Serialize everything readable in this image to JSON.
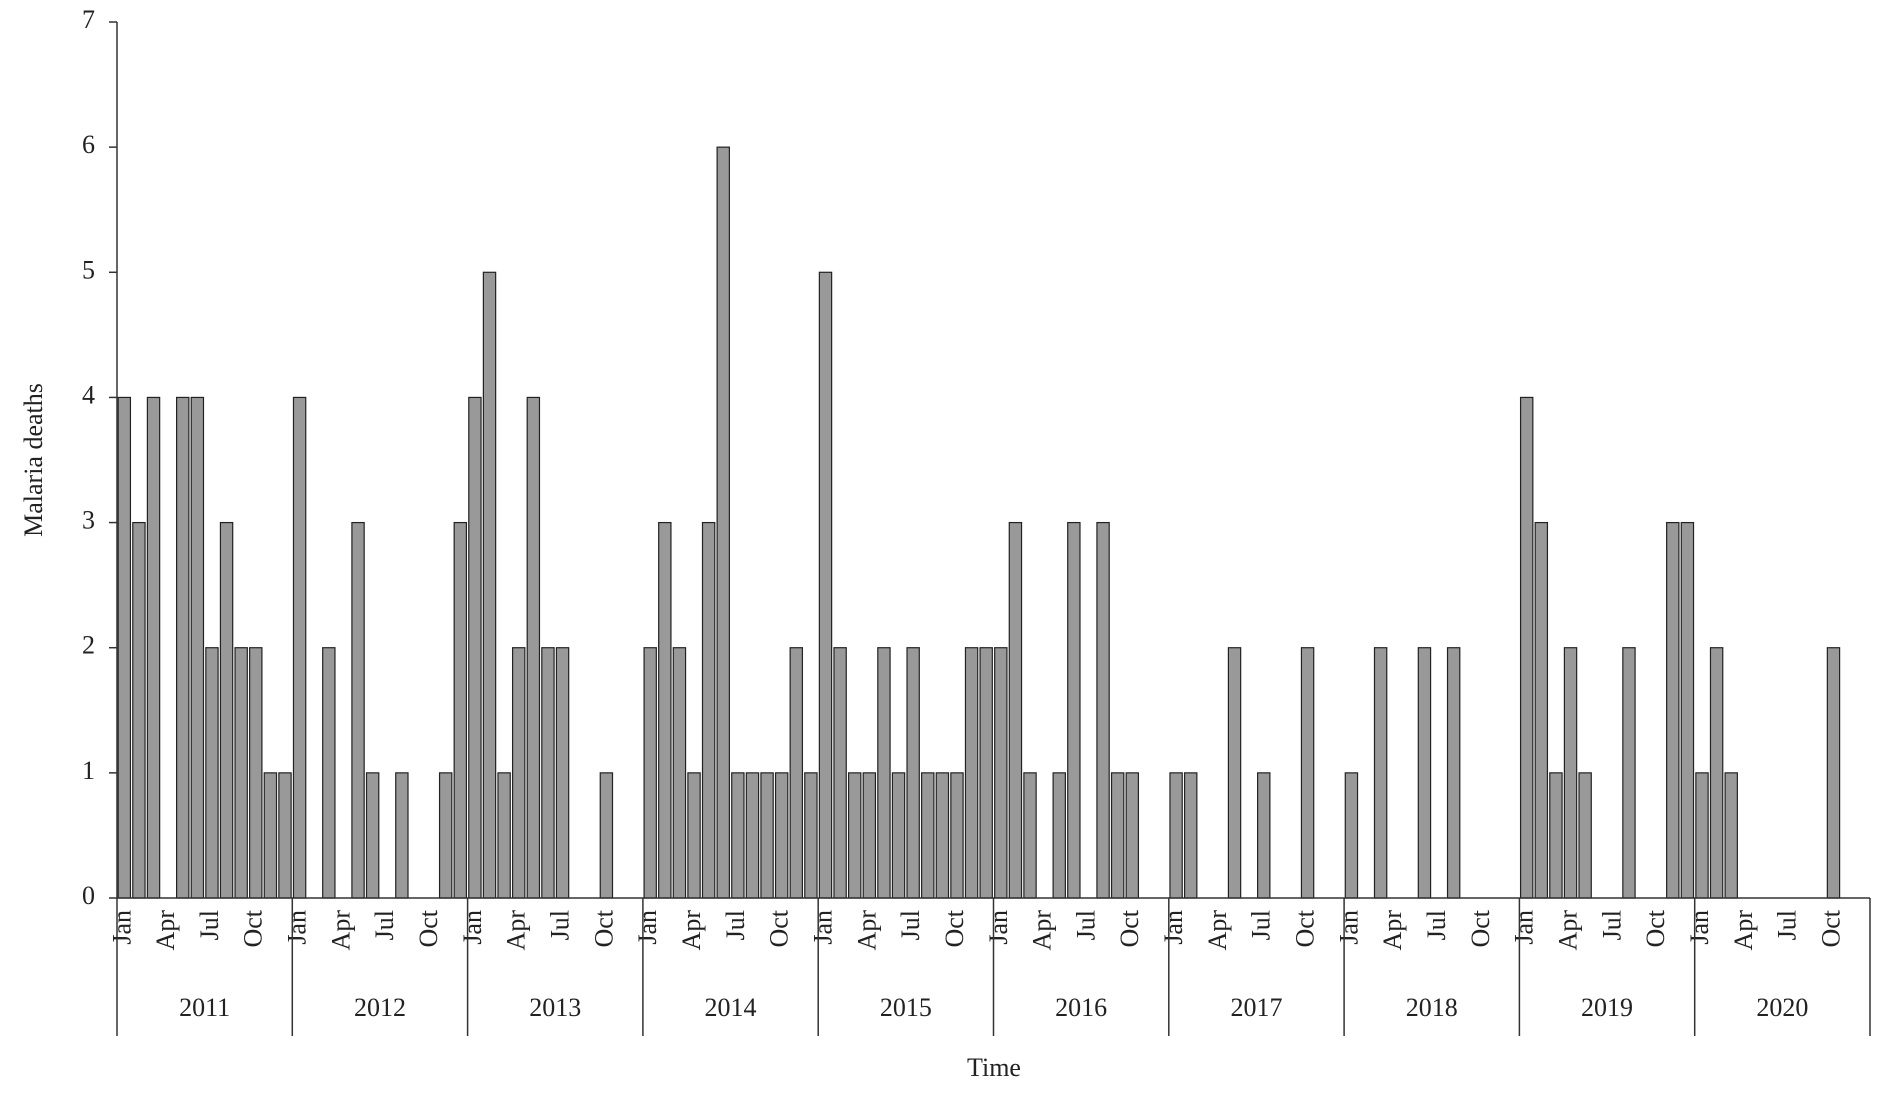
{
  "chart_data": {
    "type": "bar",
    "x_label": "Time",
    "y_label": "Malaria deaths",
    "groups": [
      "2011",
      "2012",
      "2013",
      "2014",
      "2015",
      "2016",
      "2017",
      "2018",
      "2019",
      "2020"
    ],
    "categories": [
      "Jan",
      null,
      null,
      "Apr",
      null,
      null,
      "Jul",
      null,
      null,
      "Oct",
      null,
      null,
      "Jan",
      null,
      null,
      "Apr",
      null,
      null,
      "Jul",
      null,
      null,
      "Oct",
      null,
      null,
      "Jan",
      null,
      null,
      "Apr",
      null,
      null,
      "Jul",
      null,
      null,
      "Oct",
      null,
      null,
      "Jan",
      null,
      null,
      "Apr",
      null,
      null,
      "Jul",
      null,
      null,
      "Oct",
      null,
      null,
      "Jan",
      null,
      null,
      "Apr",
      null,
      null,
      "Jul",
      null,
      null,
      "Oct",
      null,
      null,
      "Jan",
      null,
      null,
      "Apr",
      null,
      null,
      "Jul",
      null,
      null,
      "Oct",
      null,
      null,
      "Jan",
      null,
      null,
      "Apr",
      null,
      null,
      "Jul",
      null,
      null,
      "Oct",
      null,
      null,
      "Jan",
      null,
      null,
      "Apr",
      null,
      null,
      "Jul",
      null,
      null,
      "Oct",
      null,
      null,
      "Jan",
      null,
      null,
      "Apr",
      null,
      null,
      "Jul",
      null,
      null,
      "Oct",
      null,
      null,
      "Jan",
      null,
      null,
      "Apr",
      null,
      null,
      "Jul",
      null,
      null,
      "Oct",
      null,
      null
    ],
    "values": [
      4,
      3,
      4,
      0,
      4,
      4,
      2,
      3,
      2,
      2,
      1,
      1,
      4,
      0,
      2,
      0,
      3,
      1,
      0,
      1,
      0,
      0,
      1,
      3,
      4,
      5,
      1,
      2,
      4,
      2,
      2,
      0,
      0,
      1,
      0,
      0,
      2,
      3,
      2,
      1,
      3,
      6,
      1,
      1,
      1,
      1,
      2,
      1,
      5,
      2,
      1,
      1,
      2,
      1,
      2,
      1,
      1,
      1,
      2,
      2,
      2,
      3,
      1,
      0,
      1,
      3,
      0,
      3,
      1,
      1,
      0,
      0,
      1,
      1,
      0,
      0,
      2,
      0,
      1,
      0,
      0,
      2,
      0,
      0,
      1,
      0,
      2,
      0,
      0,
      2,
      0,
      2,
      0,
      0,
      0,
      0,
      4,
      3,
      1,
      2,
      1,
      0,
      0,
      2,
      0,
      0,
      3,
      3,
      1,
      2,
      1,
      0,
      0,
      0,
      0,
      0,
      0,
      2,
      0,
      0
    ],
    "color": "#999999",
    "ylim": [
      0,
      7
    ],
    "yticks": [
      0,
      1,
      2,
      3,
      4,
      5,
      6,
      7
    ],
    "grid": false
  }
}
